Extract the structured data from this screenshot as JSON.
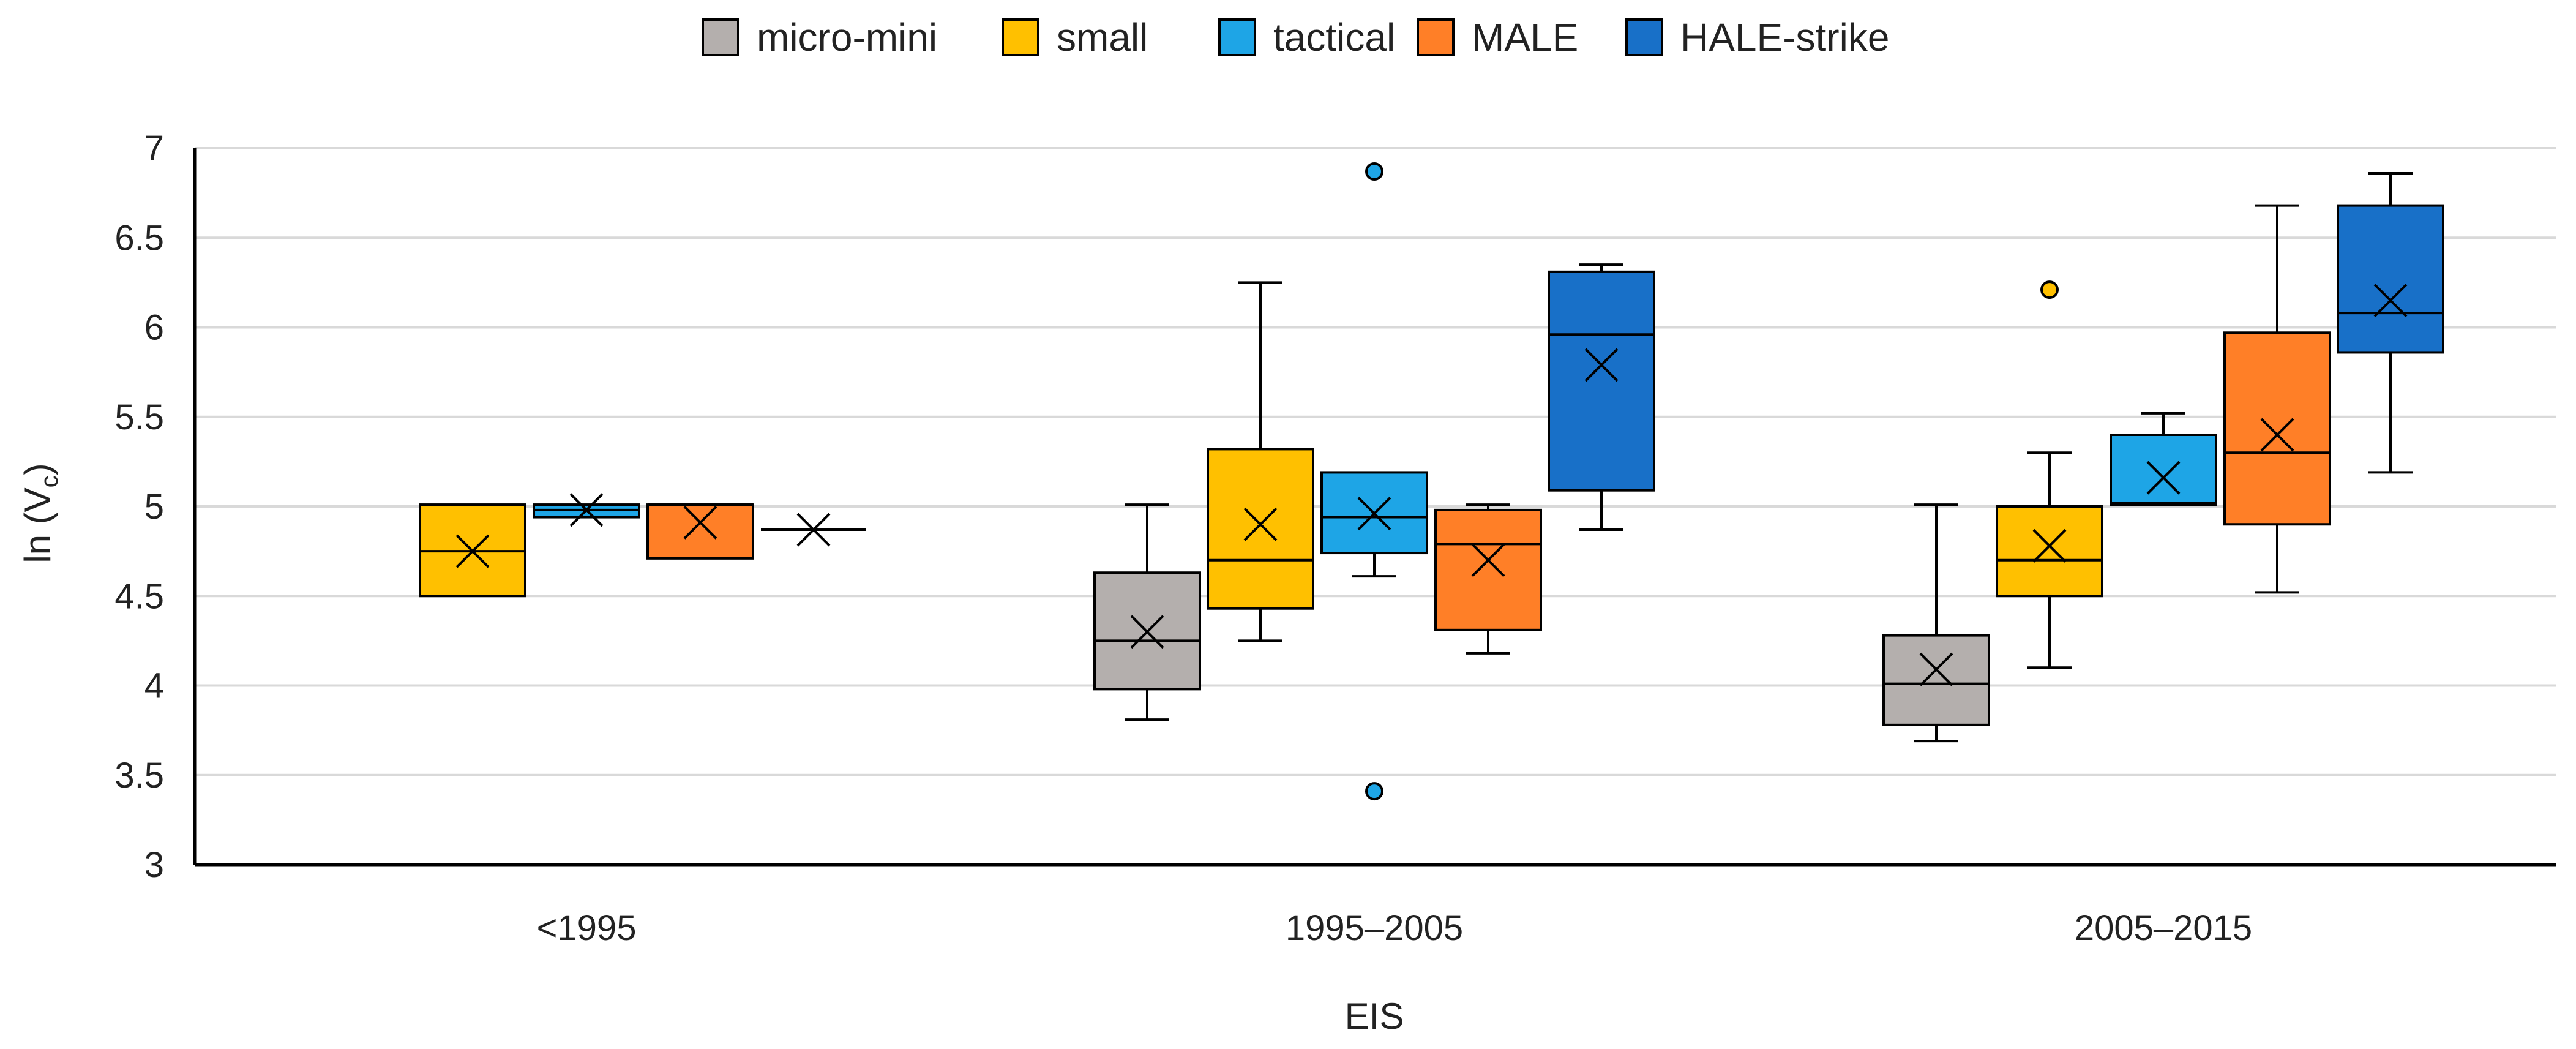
{
  "chart_data": {
    "type": "boxplot",
    "title": "",
    "xlabel": "EIS",
    "ylabel_main": "ln (V",
    "ylabel_sub": "c",
    "ylabel_close": ")",
    "ylim": [
      3,
      7
    ],
    "yticks": [
      3,
      3.5,
      4,
      4.5,
      5,
      5.5,
      6,
      6.5,
      7
    ],
    "ytick_labels": [
      "3",
      "3.5",
      "4",
      "4.5",
      "5",
      "5.5",
      "6",
      "6.5",
      "7"
    ],
    "grid": true,
    "legend_position": "top-center",
    "categories": [
      "<1995",
      "1995–2005",
      "2005–2015"
    ],
    "series": [
      {
        "name": "micro-mini",
        "color": "#b4afad",
        "boxes": [
          null,
          {
            "min": 3.81,
            "q1": 3.98,
            "median": 4.25,
            "q3": 4.63,
            "max": 5.01,
            "mean": 4.3,
            "outliers": []
          },
          {
            "min": 3.69,
            "q1": 3.78,
            "median": 4.01,
            "q3": 4.28,
            "max": 5.01,
            "mean": 4.09,
            "outliers": []
          }
        ]
      },
      {
        "name": "small",
        "color": "#ffc000",
        "boxes": [
          {
            "min": 4.5,
            "q1": 4.5,
            "median": 4.75,
            "q3": 5.01,
            "max": 5.01,
            "mean": 4.75,
            "outliers": []
          },
          {
            "min": 4.25,
            "q1": 4.43,
            "median": 4.7,
            "q3": 5.32,
            "max": 6.25,
            "mean": 4.9,
            "outliers": []
          },
          {
            "min": 4.1,
            "q1": 4.5,
            "median": 4.7,
            "q3": 5.0,
            "max": 5.3,
            "mean": 4.78,
            "outliers": [
              6.21
            ]
          }
        ]
      },
      {
        "name": "tactical",
        "color": "#1ea5e6",
        "boxes": [
          {
            "min": 4.94,
            "q1": 4.94,
            "median": 4.98,
            "q3": 5.01,
            "max": 5.01,
            "mean": 4.98,
            "outliers": []
          },
          {
            "min": 4.61,
            "q1": 4.74,
            "median": 4.94,
            "q3": 5.19,
            "max": 5.19,
            "mean": 4.96,
            "outliers": [
              6.87,
              3.41
            ]
          },
          {
            "min": 5.01,
            "q1": 5.01,
            "median": 5.02,
            "q3": 5.4,
            "max": 5.52,
            "mean": 5.16,
            "outliers": []
          }
        ]
      },
      {
        "name": "MALE",
        "color": "#ff7f27",
        "boxes": [
          {
            "min": 4.71,
            "q1": 4.71,
            "median": 5.01,
            "q3": 5.01,
            "max": 5.01,
            "mean": 4.91,
            "outliers": []
          },
          {
            "min": 4.18,
            "q1": 4.31,
            "median": 4.79,
            "q3": 4.98,
            "max": 5.01,
            "mean": 4.7,
            "outliers": []
          },
          {
            "min": 4.52,
            "q1": 4.9,
            "median": 5.3,
            "q3": 5.97,
            "max": 6.68,
            "mean": 5.4,
            "outliers": []
          }
        ]
      },
      {
        "name": "HALE-strike",
        "color": "#1870c8",
        "boxes": [
          {
            "min": 4.87,
            "q1": 4.87,
            "median": 4.87,
            "q3": 4.87,
            "max": 4.87,
            "mean": 4.87,
            "outliers": []
          },
          {
            "min": 4.87,
            "q1": 5.09,
            "median": 5.96,
            "q3": 6.31,
            "max": 6.35,
            "mean": 5.79,
            "outliers": []
          },
          {
            "min": 5.19,
            "q1": 5.86,
            "median": 6.08,
            "q3": 6.68,
            "max": 6.86,
            "mean": 6.15,
            "outliers": []
          }
        ]
      }
    ]
  }
}
